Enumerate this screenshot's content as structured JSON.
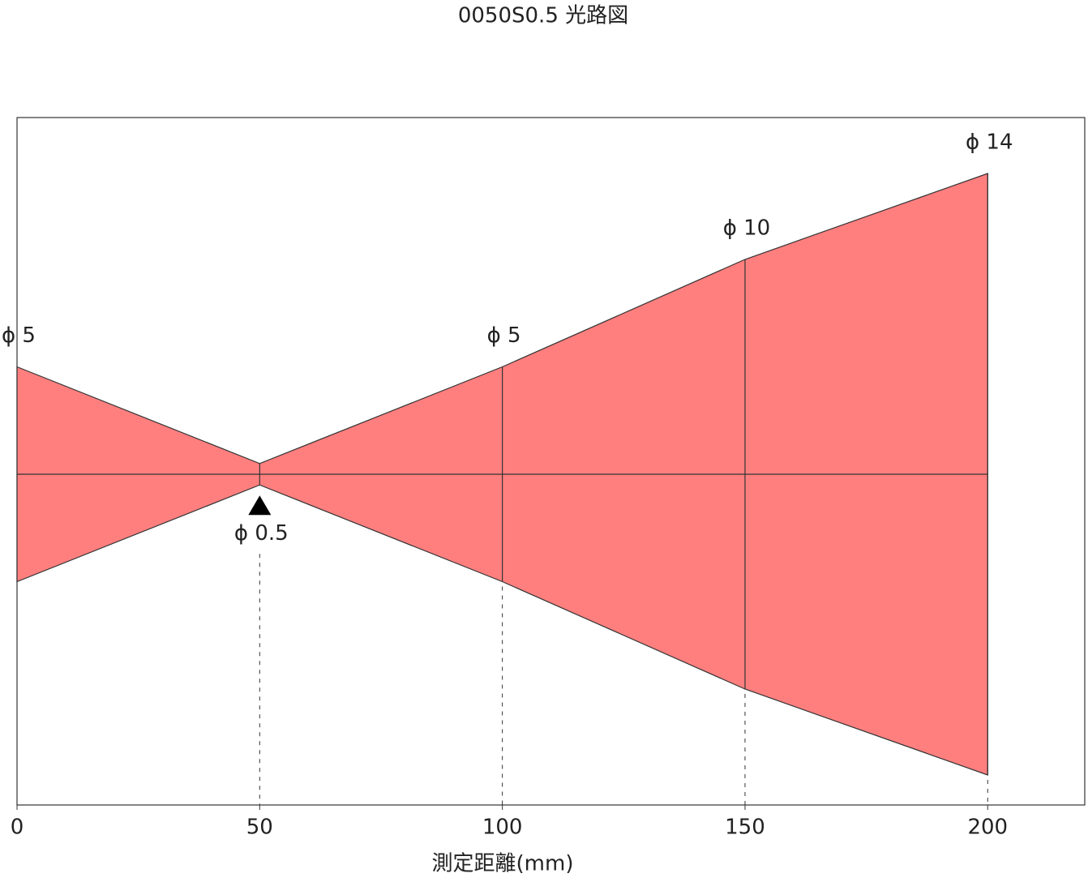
{
  "chart_data": {
    "type": "beam",
    "title": "0050S0.5 光路図",
    "x_label": "測定距離(mm)",
    "x": [
      0,
      50,
      100,
      150,
      200
    ],
    "values": [
      5,
      0.5,
      5,
      10,
      14
    ],
    "value_labels": [
      "ϕ 5",
      "ϕ 0.5",
      "ϕ 5",
      "ϕ 10",
      "ϕ 14"
    ],
    "color": "#ff7f7f",
    "xlim": [
      0,
      220
    ],
    "xticks": [
      0,
      50,
      100,
      150,
      200
    ]
  }
}
